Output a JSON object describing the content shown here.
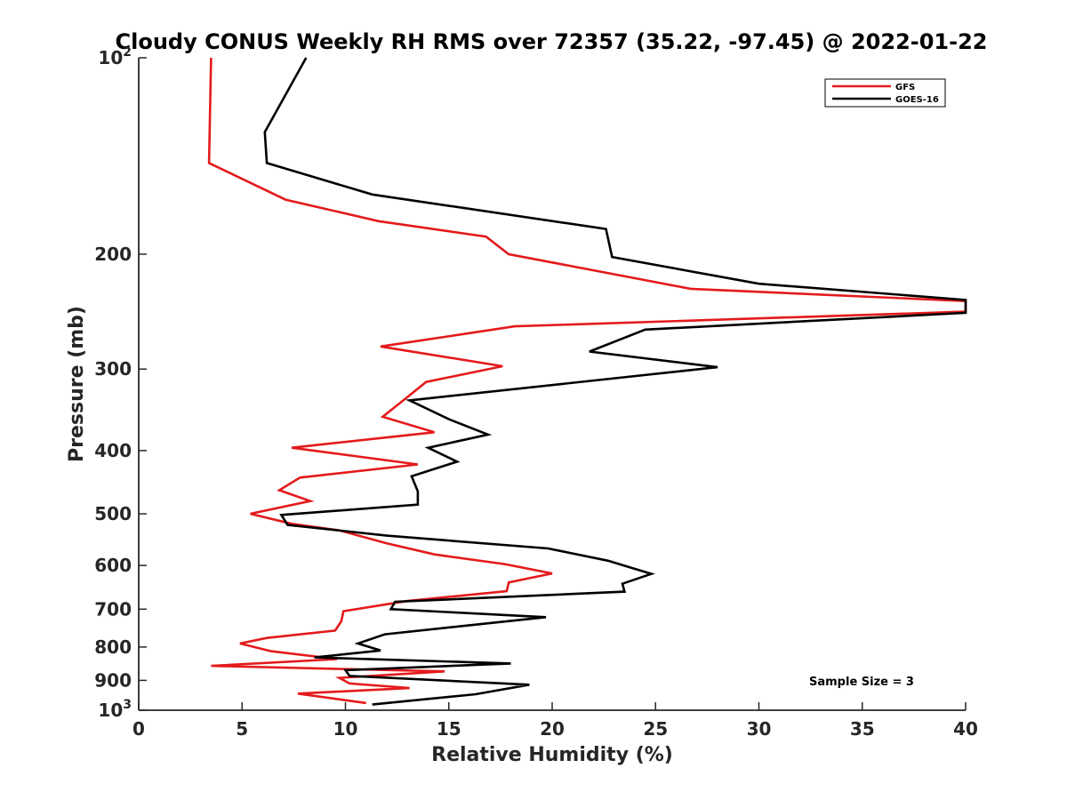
{
  "chart_data": {
    "type": "line",
    "title": "Cloudy CONUS Weekly RH RMS over 72357 (35.22, -97.45) @ 2022-01-22",
    "xlabel": "Relative Humidity (%)",
    "ylabel": "Pressure (mb)",
    "xlim": [
      0,
      40
    ],
    "ylim": [
      100,
      1000
    ],
    "y_scale": "log",
    "y_reversed": true,
    "x_ticks": [
      "0",
      "5",
      "10",
      "15",
      "20",
      "25",
      "30",
      "35",
      "40"
    ],
    "y_ticks": [
      {
        "value": 100,
        "base": "10",
        "exp": "2"
      },
      {
        "value": 200,
        "label": "200"
      },
      {
        "value": 300,
        "label": "300"
      },
      {
        "value": 400,
        "label": "400"
      },
      {
        "value": 500,
        "label": "500"
      },
      {
        "value": 600,
        "label": "600"
      },
      {
        "value": 700,
        "label": "700"
      },
      {
        "value": 800,
        "label": "800"
      },
      {
        "value": 900,
        "label": "900"
      },
      {
        "value": 1000,
        "base": "10",
        "exp": "3"
      }
    ],
    "grid": false,
    "legend_position": "top-right",
    "annotation": "Sample Size = 3",
    "series": [
      {
        "name": "GFS",
        "color": "#e41a1c",
        "x": [
          3.5,
          3.4,
          7.1,
          11.6,
          16.8,
          17.9,
          26.7,
          40.0,
          40.0,
          18.2,
          11.7,
          17.6,
          13.9,
          13.0,
          11.8,
          14.3,
          7.4,
          13.5,
          7.8,
          6.8,
          8.3,
          5.4,
          7.4,
          9.7,
          12.0,
          14.3,
          17.7,
          20.0,
          17.9,
          17.8,
          13.0,
          9.9,
          9.8,
          9.5,
          6.2,
          4.9,
          6.4,
          9.6,
          3.5,
          14.8,
          9.7,
          10.2,
          13.1,
          7.7,
          11.0
        ],
        "y": [
          100,
          145,
          165,
          178,
          188,
          200,
          226,
          236,
          245,
          258,
          277,
          297,
          314,
          331,
          355,
          375,
          396,
          420,
          440,
          460,
          478,
          500,
          518,
          530,
          555,
          577,
          597,
          617,
          637,
          657,
          680,
          705,
          730,
          755,
          775,
          790,
          812,
          835,
          855,
          872,
          892,
          910,
          925,
          943,
          975
        ]
      },
      {
        "name": "GOES-16",
        "color": "#000000",
        "x": [
          8.1,
          6.1,
          6.2,
          11.3,
          22.6,
          22.9,
          30.0,
          40.0,
          40.0,
          24.5,
          21.8,
          28.0,
          13.1,
          15.0,
          16.9,
          14.0,
          15.4,
          13.2,
          13.5,
          13.5,
          6.9,
          7.2,
          12.0,
          19.8,
          22.7,
          24.8,
          23.4,
          23.5,
          12.4,
          12.2,
          19.7,
          11.9,
          10.6,
          11.7,
          8.5,
          18.0,
          10.0,
          10.2,
          18.9,
          16.3,
          11.3
        ],
        "y": [
          100,
          130,
          145,
          162,
          183,
          202,
          222,
          235,
          246,
          261,
          282,
          298,
          335,
          358,
          378,
          396,
          416,
          438,
          462,
          484,
          502,
          520,
          540,
          565,
          590,
          618,
          640,
          658,
          682,
          700,
          720,
          765,
          790,
          810,
          830,
          848,
          868,
          886,
          914,
          945,
          980
        ]
      }
    ]
  }
}
